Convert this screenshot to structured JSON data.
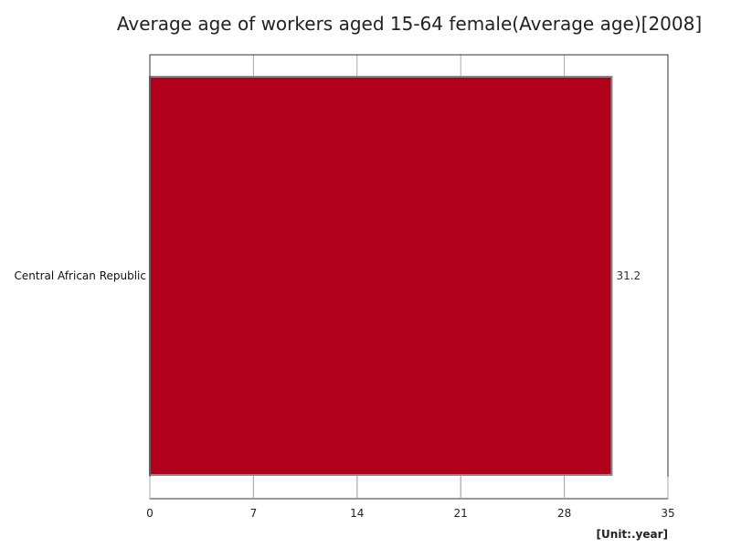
{
  "chart_data": {
    "type": "bar",
    "orientation": "horizontal",
    "title": "Average age of workers aged 15-64 female(Average age)[2008]",
    "categories": [
      "Central African Republic"
    ],
    "values": [
      31.2
    ],
    "value_labels": [
      "31.2"
    ],
    "xlim": [
      0,
      35
    ],
    "x_ticks": [
      0,
      7,
      14,
      21,
      28,
      35
    ],
    "x_tick_labels": [
      "0",
      "7",
      "14",
      "21",
      "28",
      "35"
    ],
    "unit_label": "[Unit:.year]",
    "grid": true,
    "legend": "none",
    "bar_color": "#b1001c",
    "bar_edge_color": "#888888",
    "grid_color": "#aaaaaa",
    "frame_color": "#333333"
  }
}
